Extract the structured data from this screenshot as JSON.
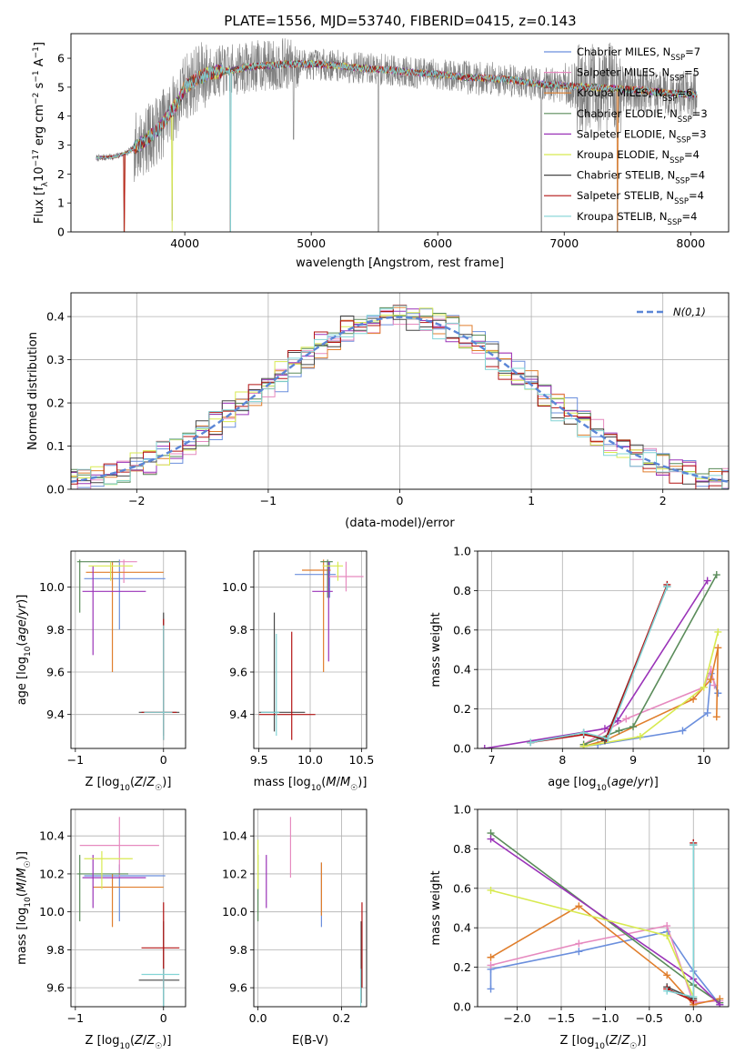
{
  "figure": {
    "title": "PLATE=1556, MJD=53740, FIBERID=0415, z=0.143",
    "models": [
      {
        "name": "Chabrier MILES",
        "nssp": 7,
        "color": "#6b8fdd"
      },
      {
        "name": "Salpeter MILES",
        "nssp": 5,
        "color": "#e68abf"
      },
      {
        "name": "Kroupa MILES",
        "nssp": 6,
        "color": "#e07e2c"
      },
      {
        "name": "Chabrier ELODIE",
        "nssp": 3,
        "color": "#5a8c5a"
      },
      {
        "name": "Salpeter ELODIE",
        "nssp": 3,
        "color": "#9a33b8"
      },
      {
        "name": "Kroupa ELODIE",
        "nssp": 4,
        "color": "#d8ea50"
      },
      {
        "name": "Chabrier STELIB",
        "nssp": 4,
        "color": "#474747"
      },
      {
        "name": "Salpeter STELIB",
        "nssp": 4,
        "color": "#b31414"
      },
      {
        "name": "Kroupa STELIB",
        "nssp": 4,
        "color": "#82d4d6"
      }
    ],
    "nssp_prefix": "N",
    "nssp_sub": "SSP"
  },
  "chart_data": [
    {
      "id": "spectrum",
      "type": "line",
      "xlabel": "wavelength [Angstrom, rest frame]",
      "ylabel": "Flux [fλ 10^-17 erg cm^-2 s^-1 A^-1]",
      "xlim": [
        3100,
        8300
      ],
      "ylim": [
        0,
        6.85
      ],
      "xticks": [
        4000,
        5000,
        6000,
        7000,
        8000
      ],
      "yticks": [
        0,
        1,
        2,
        3,
        4,
        5,
        6
      ],
      "legend": "top-right",
      "data_color": "#808080",
      "continuum": {
        "x": [
          3300,
          3450,
          3550,
          3600,
          3700,
          3800,
          3900,
          3950,
          4000,
          4100,
          4200,
          4300,
          4400,
          4500,
          4600,
          4700,
          4800,
          5000,
          5200,
          5400,
          5600,
          5800,
          6000,
          6200,
          6400,
          6600,
          6800,
          7000,
          7200,
          7400,
          7600,
          7800,
          8000,
          8050
        ],
        "y": [
          2.55,
          2.6,
          2.75,
          2.9,
          3.2,
          3.6,
          4.2,
          4.5,
          5.0,
          5.3,
          5.5,
          5.55,
          5.6,
          5.7,
          5.75,
          5.75,
          5.8,
          5.8,
          5.75,
          5.65,
          5.6,
          5.5,
          5.45,
          5.35,
          5.3,
          5.25,
          5.1,
          5.05,
          5.0,
          4.95,
          4.9,
          4.8,
          4.75,
          4.75
        ]
      },
      "dips": [
        {
          "x": 3520,
          "y": 0.0
        },
        {
          "x": 3900,
          "y": 0.4
        },
        {
          "x": 4360,
          "y": 0.0
        },
        {
          "x": 4860,
          "y": 3.2
        },
        {
          "x": 5530,
          "y": 0.0
        },
        {
          "x": 6820,
          "y": 0.0
        },
        {
          "x": 7420,
          "y": 0.0
        }
      ]
    },
    {
      "id": "residual-histogram",
      "type": "bar",
      "xlabel": "(data-model)/error",
      "ylabel": "Normed distribution",
      "xlim": [
        -2.5,
        2.5
      ],
      "ylim": [
        0,
        0.455
      ],
      "xticks": [
        -2,
        -1,
        0,
        1,
        2
      ],
      "yticks": [
        0.0,
        0.1,
        0.2,
        0.3,
        0.4
      ],
      "legend_label": "N(0,1)",
      "legend": "top-right",
      "bin_width": 0.1,
      "reference": {
        "name": "N(0,1)",
        "mean": 0,
        "sigma": 1,
        "color": "#5b86d6"
      }
    },
    {
      "id": "age-vs-Z",
      "type": "scatter",
      "xlabel": "Z [log10(Z/Z☉)]",
      "ylabel": "age [log10(age/yr)]",
      "xlim": [
        -1.05,
        0.25
      ],
      "ylim": [
        9.24,
        10.17
      ],
      "xticks": [
        -1,
        0
      ],
      "yticks": [
        9.4,
        9.6,
        9.8,
        10.0
      ],
      "points": [
        {
          "x": -0.5,
          "y": 10.04,
          "xl": -0.9,
          "xh": 0.02,
          "yl": 9.8,
          "yh": 10.13
        },
        {
          "x": -0.45,
          "y": 10.12,
          "xl": -0.75,
          "xh": -0.3,
          "yl": 10.02,
          "yh": 10.13
        },
        {
          "x": -0.58,
          "y": 10.07,
          "xl": -0.88,
          "xh": 0.0,
          "yl": 9.6,
          "yh": 10.12
        },
        {
          "x": -0.95,
          "y": 10.12,
          "xl": -0.98,
          "xh": -0.5,
          "yl": 9.88,
          "yh": 10.13
        },
        {
          "x": -0.8,
          "y": 9.98,
          "xl": -0.92,
          "xh": -0.2,
          "yl": 9.68,
          "yh": 10.1
        },
        {
          "x": -0.6,
          "y": 10.1,
          "xl": -0.85,
          "xh": -0.35,
          "yl": 10.03,
          "yh": 10.12
        },
        {
          "x": 0.0,
          "y": 9.41,
          "xl": -0.28,
          "xh": 0.18,
          "yl": 9.3,
          "yh": 9.88
        },
        {
          "x": 0.0,
          "y": 9.41,
          "xl": -0.25,
          "xh": 0.15,
          "yl": 9.28,
          "yh": 9.85
        },
        {
          "x": 0.0,
          "y": 9.41,
          "xl": -0.22,
          "xh": 0.1,
          "yl": 9.28,
          "yh": 9.82
        }
      ]
    },
    {
      "id": "age-vs-mass",
      "type": "scatter",
      "xlabel": "mass [log10(M/M☉)]",
      "ylabel": "",
      "xlim": [
        9.45,
        10.55
      ],
      "ylim": [
        9.24,
        10.17
      ],
      "xticks": [
        9.5,
        10.0,
        10.5
      ],
      "yticks": [
        9.4,
        9.6,
        9.8,
        10.0
      ],
      "points": [
        {
          "x": 10.19,
          "y": 10.06,
          "xl": 9.85,
          "xh": 10.25,
          "yl": 9.95,
          "yh": 10.12
        },
        {
          "x": 10.35,
          "y": 10.05,
          "xl": 10.18,
          "xh": 10.52,
          "yl": 9.98,
          "yh": 10.12
        },
        {
          "x": 10.13,
          "y": 10.08,
          "xl": 9.92,
          "xh": 10.2,
          "yl": 9.6,
          "yh": 10.13
        },
        {
          "x": 10.17,
          "y": 10.12,
          "xl": 10.1,
          "xh": 10.22,
          "yl": 9.95,
          "yh": 10.13
        },
        {
          "x": 10.18,
          "y": 9.98,
          "xl": 10.02,
          "xh": 10.22,
          "yl": 9.65,
          "yh": 10.12
        },
        {
          "x": 10.27,
          "y": 10.1,
          "xl": 10.12,
          "xh": 10.32,
          "yl": 10.03,
          "yh": 10.12
        },
        {
          "x": 9.65,
          "y": 9.41,
          "xl": 9.5,
          "xh": 9.95,
          "yl": 9.32,
          "yh": 9.88
        },
        {
          "x": 9.82,
          "y": 9.4,
          "xl": 9.5,
          "xh": 10.05,
          "yl": 9.28,
          "yh": 9.79
        },
        {
          "x": 9.67,
          "y": 9.41,
          "xl": 9.52,
          "xh": 9.7,
          "yl": 9.3,
          "yh": 9.78
        }
      ]
    },
    {
      "id": "weight-vs-age",
      "type": "line",
      "xlabel": "age [log10(age/yr)]",
      "ylabel": "mass weight",
      "xlim": [
        6.8,
        10.35
      ],
      "ylim": [
        0,
        1.0
      ],
      "xticks": [
        7,
        8,
        9,
        10
      ],
      "yticks": [
        0.0,
        0.2,
        0.4,
        0.6,
        0.8,
        1.0
      ],
      "series": [
        {
          "x": [
            8.3,
            8.5,
            9.7,
            10.05,
            10.1,
            10.2
          ],
          "y": [
            0.01,
            0.02,
            0.09,
            0.18,
            0.38,
            0.28
          ]
        },
        {
          "x": [
            8.3,
            8.9,
            10.0,
            10.1,
            10.15
          ],
          "y": [
            0.02,
            0.15,
            0.31,
            0.4,
            0.32
          ]
        },
        {
          "x": [
            8.3,
            8.6,
            9.85,
            10.1,
            10.2,
            10.18
          ],
          "y": [
            0.01,
            0.04,
            0.25,
            0.35,
            0.51,
            0.16
          ]
        },
        {
          "x": [
            8.3,
            8.8,
            9.0,
            10.18
          ],
          "y": [
            0.02,
            0.09,
            0.11,
            0.88
          ]
        },
        {
          "x": [
            6.9,
            8.6,
            8.78,
            10.05
          ],
          "y": [
            0.0,
            0.1,
            0.14,
            0.85
          ]
        },
        {
          "x": [
            8.3,
            9.1,
            10.0,
            10.2
          ],
          "y": [
            0.01,
            0.06,
            0.31,
            0.59
          ]
        },
        {
          "x": [
            7.55,
            8.3,
            8.6,
            9.48
          ],
          "y": [
            0.03,
            0.08,
            0.04,
            0.82
          ]
        },
        {
          "x": [
            7.55,
            8.3,
            8.62,
            9.48
          ],
          "y": [
            0.03,
            0.07,
            0.05,
            0.83
          ]
        },
        {
          "x": [
            7.55,
            8.3,
            8.64,
            9.48
          ],
          "y": [
            0.03,
            0.08,
            0.05,
            0.82
          ]
        }
      ]
    },
    {
      "id": "mass-vs-Z",
      "type": "scatter",
      "xlabel": "Z [log10(Z/Z☉)]",
      "ylabel": "mass [log10(M/M☉)]",
      "xlim": [
        -1.05,
        0.25
      ],
      "ylim": [
        9.5,
        10.54
      ],
      "xticks": [
        -1,
        0
      ],
      "yticks": [
        9.6,
        9.8,
        10.0,
        10.2,
        10.4
      ],
      "points": [
        {
          "x": -0.5,
          "y": 10.19,
          "xl": -0.9,
          "xh": 0.02,
          "yl": 9.95,
          "yh": 10.25
        },
        {
          "x": -0.5,
          "y": 10.35,
          "xl": -0.95,
          "xh": -0.05,
          "yl": 10.18,
          "yh": 10.5
        },
        {
          "x": -0.58,
          "y": 10.13,
          "xl": -0.8,
          "xh": 0.0,
          "yl": 9.92,
          "yh": 10.2
        },
        {
          "x": -0.95,
          "y": 10.2,
          "xl": -0.98,
          "xh": -0.4,
          "yl": 9.95,
          "yh": 10.3
        },
        {
          "x": -0.8,
          "y": 10.18,
          "xl": -0.92,
          "xh": -0.2,
          "yl": 10.02,
          "yh": 10.3
        },
        {
          "x": -0.7,
          "y": 10.28,
          "xl": -0.9,
          "xh": -0.35,
          "yl": 10.12,
          "yh": 10.32
        },
        {
          "x": 0.0,
          "y": 9.64,
          "xl": -0.28,
          "xh": 0.18,
          "yl": 9.5,
          "yh": 9.95
        },
        {
          "x": 0.0,
          "y": 9.81,
          "xl": -0.25,
          "xh": 0.18,
          "yl": 9.6,
          "yh": 10.05
        },
        {
          "x": 0.0,
          "y": 9.67,
          "xl": -0.25,
          "xh": 0.18,
          "yl": 9.5,
          "yh": 9.7
        }
      ]
    },
    {
      "id": "mass-vs-EBV",
      "type": "scatter",
      "xlabel": "E(B-V)",
      "ylabel": "",
      "xlim": [
        -0.01,
        0.26
      ],
      "ylim": [
        9.5,
        10.54
      ],
      "xticks": [
        0.0,
        0.2
      ],
      "yticks": [
        9.6,
        9.8,
        10.0,
        10.2,
        10.4
      ],
      "points": [
        {
          "x": 0.152,
          "y": 10.0,
          "xl": 0.152,
          "xh": 0.152,
          "yl": 9.92,
          "yh": 10.26
        },
        {
          "x": 0.078,
          "y": 10.35,
          "xl": 0.078,
          "xh": 0.078,
          "yl": 10.18,
          "yh": 10.5
        },
        {
          "x": 0.152,
          "y": 10.13,
          "xl": 0.152,
          "xh": 0.152,
          "yl": 9.98,
          "yh": 10.26
        },
        {
          "x": 0.0,
          "y": 10.2,
          "xl": 0.0,
          "xh": 0.0,
          "yl": 9.95,
          "yh": 10.3
        },
        {
          "x": 0.02,
          "y": 10.18,
          "xl": 0.02,
          "xh": 0.02,
          "yl": 10.02,
          "yh": 10.3
        },
        {
          "x": 0.0,
          "y": 10.28,
          "xl": 0.0,
          "xh": 0.0,
          "yl": 10.12,
          "yh": 10.38
        },
        {
          "x": 0.247,
          "y": 9.64,
          "xl": 0.247,
          "xh": 0.247,
          "yl": 9.52,
          "yh": 9.95
        },
        {
          "x": 0.249,
          "y": 9.81,
          "xl": 0.249,
          "xh": 0.249,
          "yl": 9.6,
          "yh": 10.05
        },
        {
          "x": 0.246,
          "y": 9.67,
          "xl": 0.246,
          "xh": 0.246,
          "yl": 9.5,
          "yh": 9.7
        }
      ]
    },
    {
      "id": "weight-vs-Z",
      "type": "line",
      "xlabel": "Z [log10(Z/Z☉)]",
      "ylabel": "mass weight",
      "xlim": [
        -2.45,
        0.4
      ],
      "ylim": [
        0,
        1.0
      ],
      "xticks": [
        -2.0,
        -1.5,
        -1.0,
        -0.5,
        0.0
      ],
      "yticks": [
        0.0,
        0.2,
        0.4,
        0.6,
        0.8,
        1.0
      ],
      "series": [
        {
          "x": [
            -2.3,
            -2.3,
            -1.3,
            -0.3,
            0.0,
            0.3
          ],
          "y": [
            0.09,
            0.19,
            0.28,
            0.38,
            0.18,
            0.01
          ]
        },
        {
          "x": [
            -2.3,
            -1.3,
            -0.3,
            0.0,
            0.3
          ],
          "y": [
            0.21,
            0.32,
            0.41,
            0.02,
            0.03
          ]
        },
        {
          "x": [
            -2.3,
            -1.3,
            -0.3,
            0.0,
            0.3
          ],
          "y": [
            0.25,
            0.51,
            0.16,
            0.01,
            0.04
          ]
        },
        {
          "x": [
            -2.3,
            0.0,
            0.3
          ],
          "y": [
            0.88,
            0.11,
            0.02
          ]
        },
        {
          "x": [
            -2.3,
            0.0,
            0.3
          ],
          "y": [
            0.85,
            0.14,
            0.01
          ]
        },
        {
          "x": [
            -2.3,
            -0.3,
            0.0
          ],
          "y": [
            0.59,
            0.36,
            0.05
          ]
        },
        {
          "x": [
            -0.3,
            0.0,
            0.0
          ],
          "y": [
            0.1,
            0.04,
            0.82
          ]
        },
        {
          "x": [
            -0.3,
            0.0,
            0.0
          ],
          "y": [
            0.09,
            0.03,
            0.83
          ]
        },
        {
          "x": [
            -0.3,
            0.0,
            0.0
          ],
          "y": [
            0.08,
            0.05,
            0.82
          ]
        }
      ]
    }
  ]
}
